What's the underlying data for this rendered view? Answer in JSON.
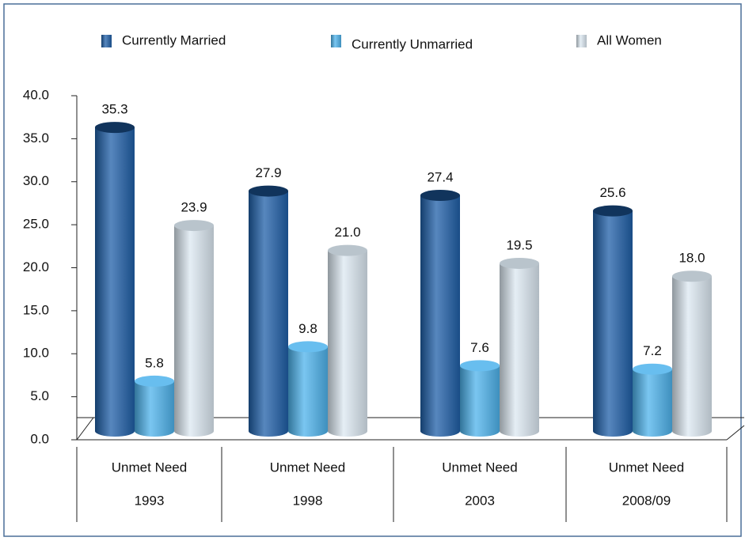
{
  "chart_data": {
    "type": "bar",
    "categories": [
      [
        "Unmet Need",
        "1993"
      ],
      [
        "Unmet Need",
        "1998"
      ],
      [
        "Unmet Need",
        "2003"
      ],
      [
        "Unmet Need",
        "2008/09"
      ]
    ],
    "series": [
      {
        "name": "Currently Married",
        "color": "#1f5fa8",
        "values": [
          35.3,
          27.9,
          27.4,
          25.6
        ],
        "value_labels": [
          "35.3",
          "27.9",
          "27.4",
          "25.6"
        ]
      },
      {
        "name": "Currently Unmarried",
        "color": "#4db3ec",
        "values": [
          5.8,
          9.8,
          7.6,
          7.2
        ],
        "value_labels": [
          "5.8",
          "9.8",
          "7.6",
          "7.2"
        ]
      },
      {
        "name": "All Women",
        "color": "#dce8f2",
        "values": [
          23.9,
          21.0,
          19.5,
          18.0
        ],
        "value_labels": [
          "23.9",
          "21.0",
          "19.5",
          "18.0"
        ]
      }
    ],
    "ylim": [
      0,
      40
    ],
    "yticks": [
      {
        "value": 0,
        "label": "0.0"
      },
      {
        "value": 5,
        "label": "5.0"
      },
      {
        "value": 10,
        "label": "10.0"
      },
      {
        "value": 15,
        "label": "15.0"
      },
      {
        "value": 20,
        "label": "20.0"
      },
      {
        "value": 25,
        "label": "25.0"
      },
      {
        "value": 30,
        "label": "30.0"
      },
      {
        "value": 35,
        "label": "35.0"
      },
      {
        "value": 40,
        "label": "40.0"
      }
    ],
    "grid": false
  }
}
